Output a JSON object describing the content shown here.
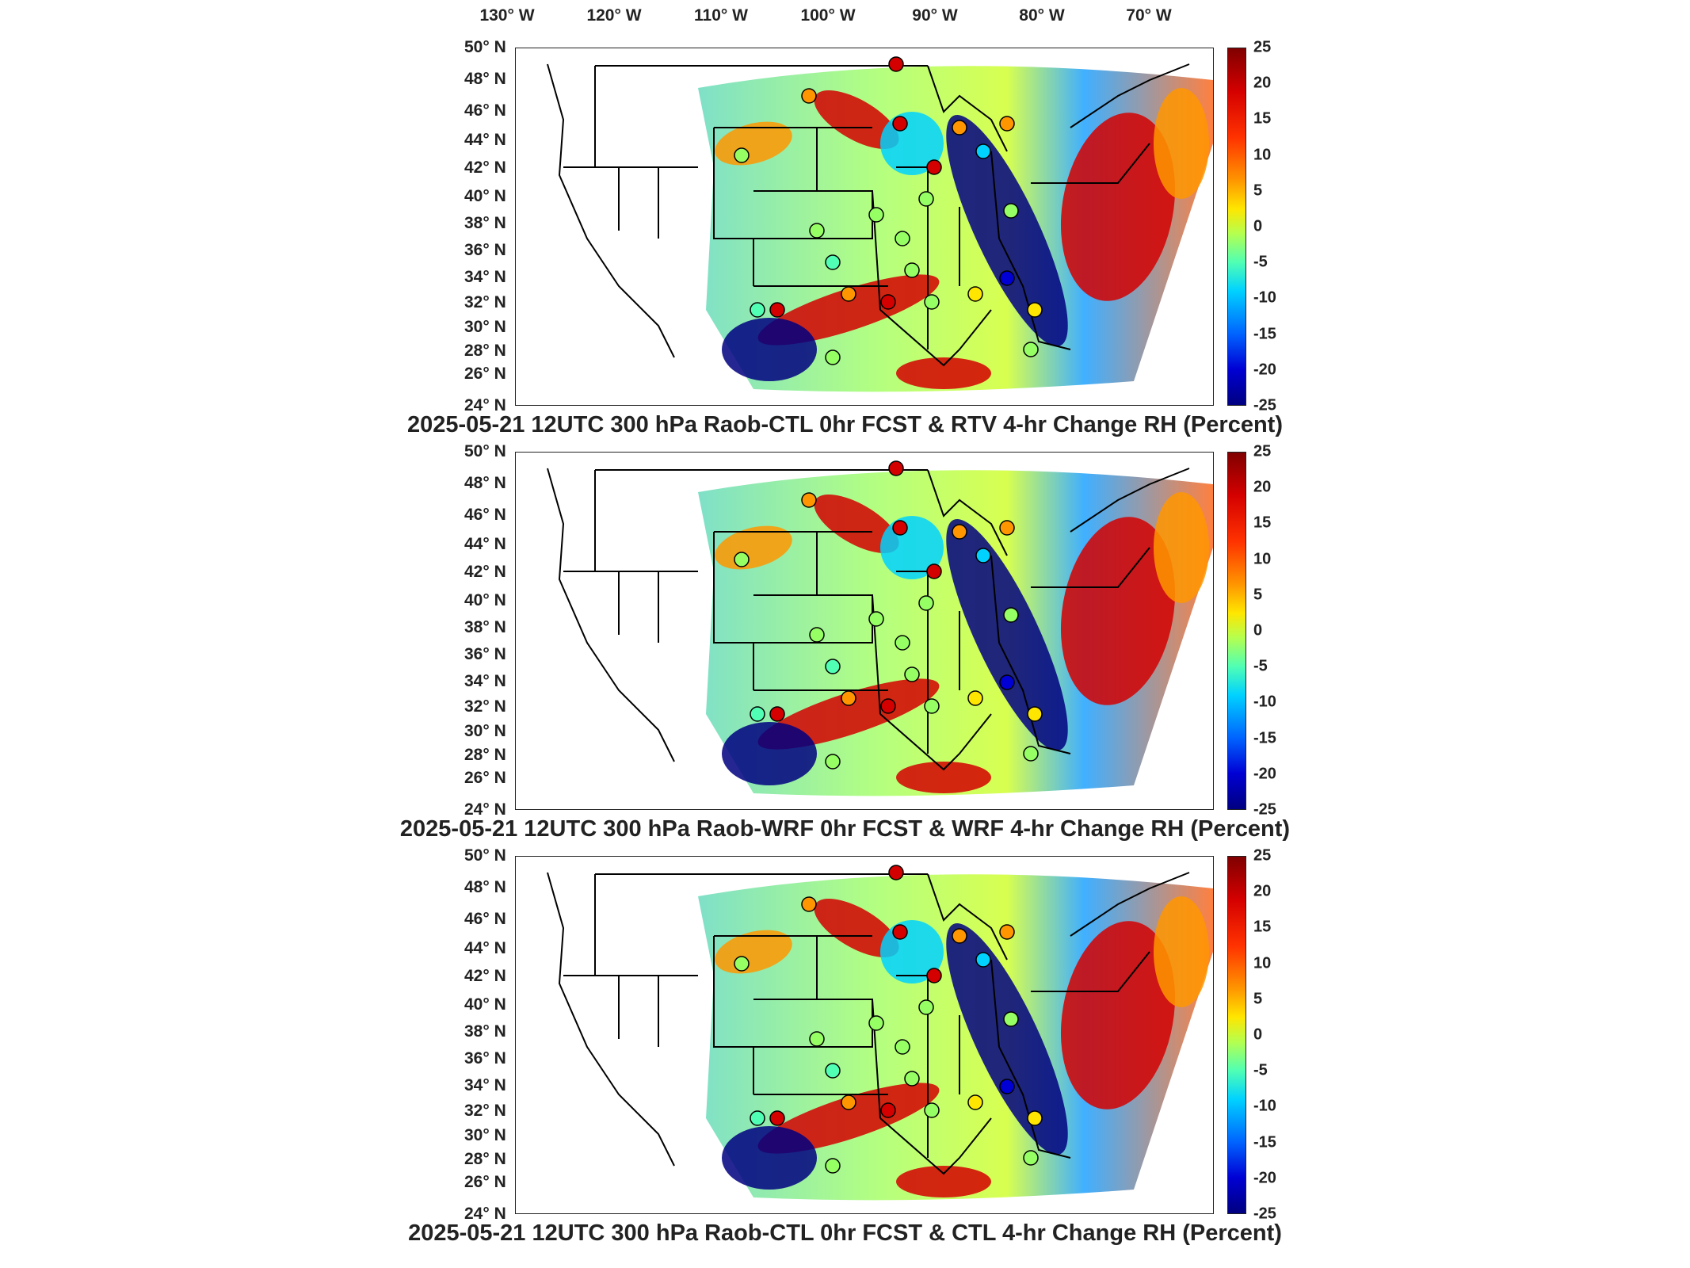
{
  "lon_labels": [
    {
      "deg": "130",
      "hemi": "W"
    },
    {
      "deg": "120",
      "hemi": "W"
    },
    {
      "deg": "110",
      "hemi": "W"
    },
    {
      "deg": "100",
      "hemi": "W"
    },
    {
      "deg": "90",
      "hemi": "W"
    },
    {
      "deg": "80",
      "hemi": "W"
    },
    {
      "deg": "70",
      "hemi": "W"
    }
  ],
  "lat_labels": [
    {
      "deg": "50",
      "hemi": "N"
    },
    {
      "deg": "48",
      "hemi": "N"
    },
    {
      "deg": "46",
      "hemi": "N"
    },
    {
      "deg": "44",
      "hemi": "N"
    },
    {
      "deg": "42",
      "hemi": "N"
    },
    {
      "deg": "40",
      "hemi": "N"
    },
    {
      "deg": "38",
      "hemi": "N"
    },
    {
      "deg": "36",
      "hemi": "N"
    },
    {
      "deg": "34",
      "hemi": "N"
    },
    {
      "deg": "32",
      "hemi": "N"
    },
    {
      "deg": "30",
      "hemi": "N"
    },
    {
      "deg": "28",
      "hemi": "N"
    },
    {
      "deg": "26",
      "hemi": "N"
    },
    {
      "deg": "24",
      "hemi": "N"
    }
  ],
  "colorbar_ticks": [
    "25",
    "20",
    "15",
    "10",
    "5",
    "0",
    "-5",
    "-10",
    "-15",
    "-20",
    "-25"
  ],
  "colorbar_range": [
    -25,
    25
  ],
  "colors": {
    "warm": "#d40000",
    "orange": "#ff9600",
    "cyan": "#00d2ff",
    "deep_blue": "#000080",
    "green": "#96ff64"
  },
  "panels": [
    {
      "title": "2025-05-21 12UTC 300 hPa Raob-CTL 0hr FCST & RTV 4-hr Change RH (Percent)"
    },
    {
      "title": "2025-05-21 12UTC 300 hPa Raob-WRF 0hr FCST & WRF 4-hr Change RH (Percent)"
    },
    {
      "title": "2025-05-21 12UTC 300 hPa Raob-CTL 0hr FCST & CTL 4-hr Change RH (Percent)"
    }
  ]
}
